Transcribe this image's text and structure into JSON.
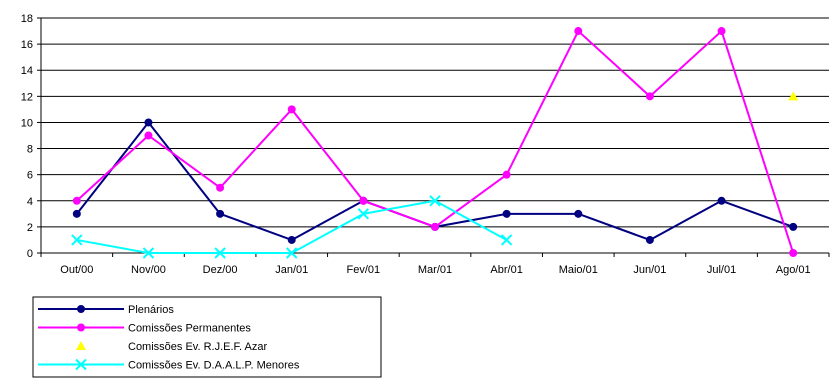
{
  "chart_data": {
    "type": "line",
    "categories": [
      "Out/00",
      "Nov/00",
      "Dez/00",
      "Jan/01",
      "Fev/01",
      "Mar/01",
      "Abr/01",
      "Maio/01",
      "Jun/01",
      "Jul/01",
      "Ago/01"
    ],
    "ylim": [
      0,
      18
    ],
    "yticks": [
      0,
      2,
      4,
      6,
      8,
      10,
      12,
      14,
      16,
      18
    ],
    "grid": "horizontal",
    "legend_position": "bottom-left",
    "series": [
      {
        "name": "Plenários",
        "color": "#000080",
        "marker": "circle",
        "values": [
          3,
          10,
          3,
          1,
          4,
          2,
          3,
          3,
          1,
          4,
          2
        ]
      },
      {
        "name": "Comissões Permanentes",
        "color": "#ff00ff",
        "marker": "circle",
        "values": [
          4,
          9,
          5,
          11,
          4,
          2,
          6,
          17,
          12,
          17,
          0
        ]
      },
      {
        "name": "Comissões Ev. R.J.E.F. Azar",
        "color": "#ffff00",
        "marker": "triangle",
        "line": false,
        "values": [
          null,
          null,
          null,
          null,
          null,
          null,
          null,
          null,
          null,
          null,
          12
        ]
      },
      {
        "name": "Comissões Ev. D.A.A.L.P. Menores",
        "color": "#00ffff",
        "marker": "x",
        "values": [
          1,
          0,
          0,
          0,
          3,
          4,
          1,
          null,
          null,
          null,
          null
        ]
      }
    ]
  }
}
